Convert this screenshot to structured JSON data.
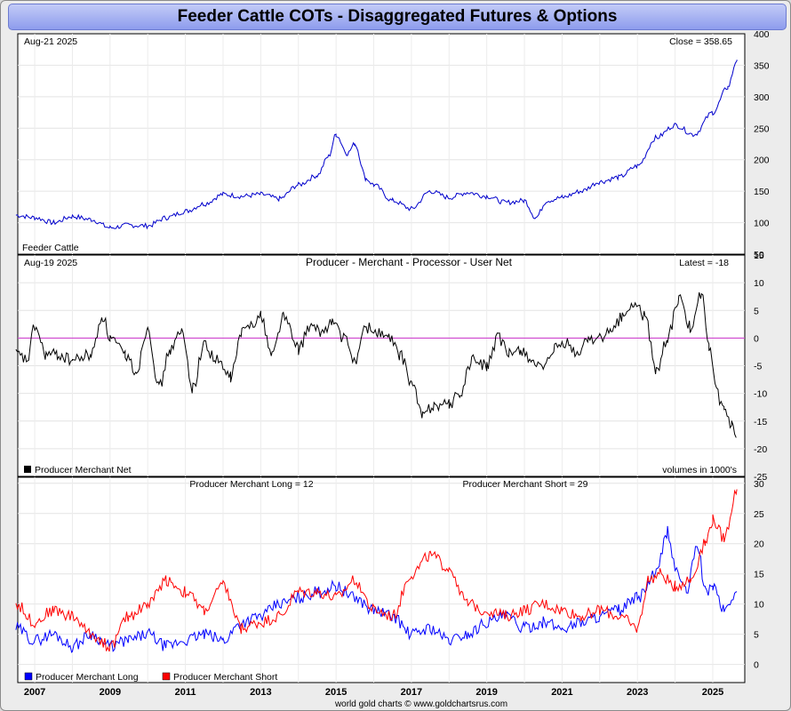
{
  "title": "Feeder Cattle COTs - Disaggregated Futures & Options",
  "footer": "world gold charts © www.goldchartsrus.com",
  "colors": {
    "price": "#0000cc",
    "net": "#000000",
    "zero": "#cc33cc",
    "long": "#0000ff",
    "short": "#ff0000"
  },
  "x_labels": [
    "2007",
    "2009",
    "2011",
    "2013",
    "2015",
    "2017",
    "2019",
    "2021",
    "2023",
    "2025"
  ],
  "chart_data": [
    {
      "type": "line",
      "name": "price-panel",
      "date_label": "Aug-21  2025",
      "value_label": "Close = 358.65",
      "series_label": "Feeder Cattle",
      "ylim": [
        50,
        400
      ],
      "yticks": [
        50,
        100,
        150,
        200,
        250,
        300,
        350,
        400
      ],
      "series": [
        {
          "name": "Feeder Cattle",
          "x": [
            2006.5,
            2007.0,
            2007.5,
            2008.0,
            2008.5,
            2009.0,
            2009.5,
            2010.0,
            2010.5,
            2011.0,
            2011.5,
            2012.0,
            2012.5,
            2013.0,
            2013.5,
            2014.0,
            2014.5,
            2014.8,
            2015.0,
            2015.3,
            2015.5,
            2015.8,
            2016.0,
            2016.5,
            2017.0,
            2017.5,
            2018.0,
            2018.5,
            2019.0,
            2019.5,
            2020.0,
            2020.3,
            2020.6,
            2021.0,
            2021.5,
            2022.0,
            2022.5,
            2023.0,
            2023.5,
            2024.0,
            2024.5,
            2025.0,
            2025.4,
            2025.64
          ],
          "values": [
            112,
            108,
            100,
            110,
            105,
            92,
            96,
            95,
            108,
            118,
            130,
            145,
            142,
            145,
            138,
            160,
            175,
            205,
            240,
            210,
            225,
            170,
            160,
            135,
            122,
            150,
            140,
            148,
            142,
            132,
            135,
            108,
            135,
            140,
            150,
            165,
            172,
            190,
            235,
            255,
            240,
            275,
            315,
            358.65
          ]
        }
      ]
    },
    {
      "type": "line",
      "name": "net-panel",
      "date_label": "Aug-19  2025",
      "title": "Producer - Merchant - Processor - User Net",
      "value_label": "Latest = -18",
      "legend": "Producer Merchant Net",
      "units_label": "volumes in 1000's",
      "ylim": [
        -25,
        15
      ],
      "yticks": [
        -25,
        -20,
        -15,
        -10,
        -5,
        0,
        5,
        10,
        15
      ],
      "series": [
        {
          "name": "Producer Merchant Net",
          "x": [
            2006.5,
            2006.8,
            2007.0,
            2007.3,
            2007.6,
            2008.0,
            2008.5,
            2008.8,
            2009.0,
            2009.4,
            2009.7,
            2010.0,
            2010.3,
            2010.6,
            2010.9,
            2011.2,
            2011.5,
            2011.8,
            2012.2,
            2012.5,
            2012.8,
            2013.0,
            2013.3,
            2013.6,
            2014.0,
            2014.3,
            2014.6,
            2014.9,
            2015.2,
            2015.5,
            2015.8,
            2016.1,
            2016.4,
            2016.7,
            2017.0,
            2017.3,
            2017.6,
            2018.0,
            2018.3,
            2018.6,
            2019.0,
            2019.3,
            2019.6,
            2019.9,
            2020.2,
            2020.5,
            2020.8,
            2021.1,
            2021.4,
            2021.7,
            2022.0,
            2022.3,
            2022.6,
            2022.9,
            2023.2,
            2023.5,
            2023.8,
            2024.1,
            2024.4,
            2024.7,
            2024.9,
            2025.1,
            2025.3,
            2025.5,
            2025.62
          ],
          "values": [
            -3,
            -4,
            2,
            -3,
            -3,
            -4,
            -3,
            4,
            0,
            -3,
            -6,
            2,
            -9,
            -2,
            1,
            -9,
            -1,
            -4,
            -7,
            1,
            3,
            4,
            -3,
            4,
            -2,
            2,
            1,
            3,
            0,
            -4,
            2,
            1,
            0,
            -3,
            -8,
            -14,
            -12,
            -12,
            -10,
            -4,
            -5,
            0,
            -3,
            -2,
            -4,
            -6,
            -2,
            -1,
            -3,
            0,
            0,
            1,
            4,
            6,
            4,
            -6,
            0,
            7,
            2,
            8,
            -2,
            -10,
            -13,
            -16,
            -18
          ]
        }
      ]
    },
    {
      "type": "line",
      "name": "long-short-panel",
      "long_label": "Producer Merchant Long = 12",
      "short_label": "Producer Merchant Short = 29",
      "ylim": [
        -3,
        31
      ],
      "yticks": [
        0,
        5,
        10,
        15,
        20,
        25,
        30
      ],
      "series": [
        {
          "name": "Producer Merchant Long",
          "x": [
            2006.5,
            2007.0,
            2007.5,
            2008.0,
            2008.5,
            2009.0,
            2009.5,
            2010.0,
            2010.5,
            2011.0,
            2011.5,
            2012.0,
            2012.5,
            2013.0,
            2013.5,
            2014.0,
            2014.5,
            2015.0,
            2015.5,
            2016.0,
            2016.5,
            2017.0,
            2017.5,
            2018.0,
            2018.5,
            2019.0,
            2019.5,
            2020.0,
            2020.5,
            2021.0,
            2021.5,
            2022.0,
            2022.5,
            2023.0,
            2023.5,
            2023.8,
            2024.0,
            2024.3,
            2024.6,
            2024.8,
            2025.0,
            2025.3,
            2025.64
          ],
          "values": [
            6,
            4,
            5,
            3,
            5,
            3,
            4,
            5,
            3,
            4,
            5,
            4,
            7,
            8,
            10,
            11,
            12,
            13,
            11,
            9,
            8,
            5,
            6,
            4,
            5,
            7,
            8,
            6,
            7,
            6,
            7,
            8,
            9,
            11,
            15,
            22,
            16,
            12,
            20,
            12,
            13,
            9,
            12
          ]
        },
        {
          "name": "Producer Merchant Short",
          "x": [
            2006.5,
            2007.0,
            2007.5,
            2008.0,
            2008.5,
            2009.0,
            2009.5,
            2010.0,
            2010.5,
            2011.0,
            2011.5,
            2012.0,
            2012.5,
            2013.0,
            2013.5,
            2014.0,
            2014.5,
            2015.0,
            2015.5,
            2016.0,
            2016.5,
            2017.0,
            2017.5,
            2018.0,
            2018.5,
            2019.0,
            2019.5,
            2020.0,
            2020.5,
            2021.0,
            2021.5,
            2022.0,
            2022.5,
            2023.0,
            2023.3,
            2023.6,
            2024.0,
            2024.4,
            2024.8,
            2025.0,
            2025.3,
            2025.64
          ],
          "values": [
            10,
            7,
            9,
            8,
            5,
            3,
            8,
            10,
            14,
            12,
            9,
            13,
            6,
            7,
            8,
            12,
            12,
            11,
            14,
            9,
            8,
            15,
            18,
            16,
            10,
            9,
            8,
            9,
            10,
            9,
            8,
            9,
            8,
            6,
            14,
            15,
            13,
            14,
            20,
            24,
            21,
            29
          ]
        }
      ]
    }
  ]
}
